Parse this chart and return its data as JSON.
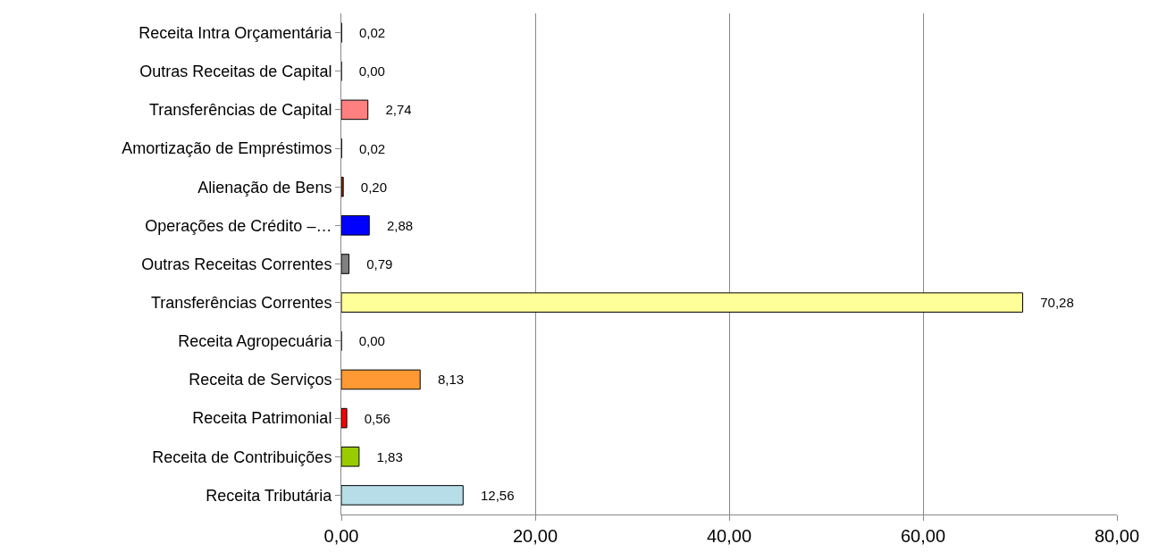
{
  "chart_data": {
    "type": "bar",
    "orientation": "horizontal",
    "categories": [
      "Receita Intra Orçamentária",
      "Outras Receitas de Capital",
      "Transferências de Capital",
      "Amortização de Empréstimos",
      "Alienação de Bens",
      "Operações de Crédito –…",
      "Outras Receitas Correntes",
      "Transferências Correntes",
      "Receita Agropecuária",
      "Receita de Serviços",
      "Receita Patrimonial",
      "Receita de Contribuições",
      "Receita Tributária"
    ],
    "values": [
      0.02,
      0.0,
      2.74,
      0.02,
      0.2,
      2.88,
      0.79,
      70.28,
      0.0,
      8.13,
      0.56,
      1.83,
      12.56
    ],
    "value_labels": [
      "0,02",
      "0,00",
      "2,74",
      "0,02",
      "0,20",
      "2,88",
      "0,79",
      "70,28",
      "0,00",
      "8,13",
      "0,56",
      "1,83",
      "12,56"
    ],
    "colors": [
      "#333399",
      "#000000",
      "#ff8080",
      "#333333",
      "#993300",
      "#0000ff",
      "#808080",
      "#ffff99",
      "#000000",
      "#ff9933",
      "#ff0000",
      "#99cc00",
      "#b7dde8"
    ],
    "xlim": [
      0,
      80
    ],
    "xticks": [
      {
        "value": 0,
        "label": "0,00"
      },
      {
        "value": 20,
        "label": "20,00"
      },
      {
        "value": 40,
        "label": "40,00"
      },
      {
        "value": 60,
        "label": "60,00"
      },
      {
        "value": 80,
        "label": "80,00"
      }
    ],
    "grid": "x"
  }
}
